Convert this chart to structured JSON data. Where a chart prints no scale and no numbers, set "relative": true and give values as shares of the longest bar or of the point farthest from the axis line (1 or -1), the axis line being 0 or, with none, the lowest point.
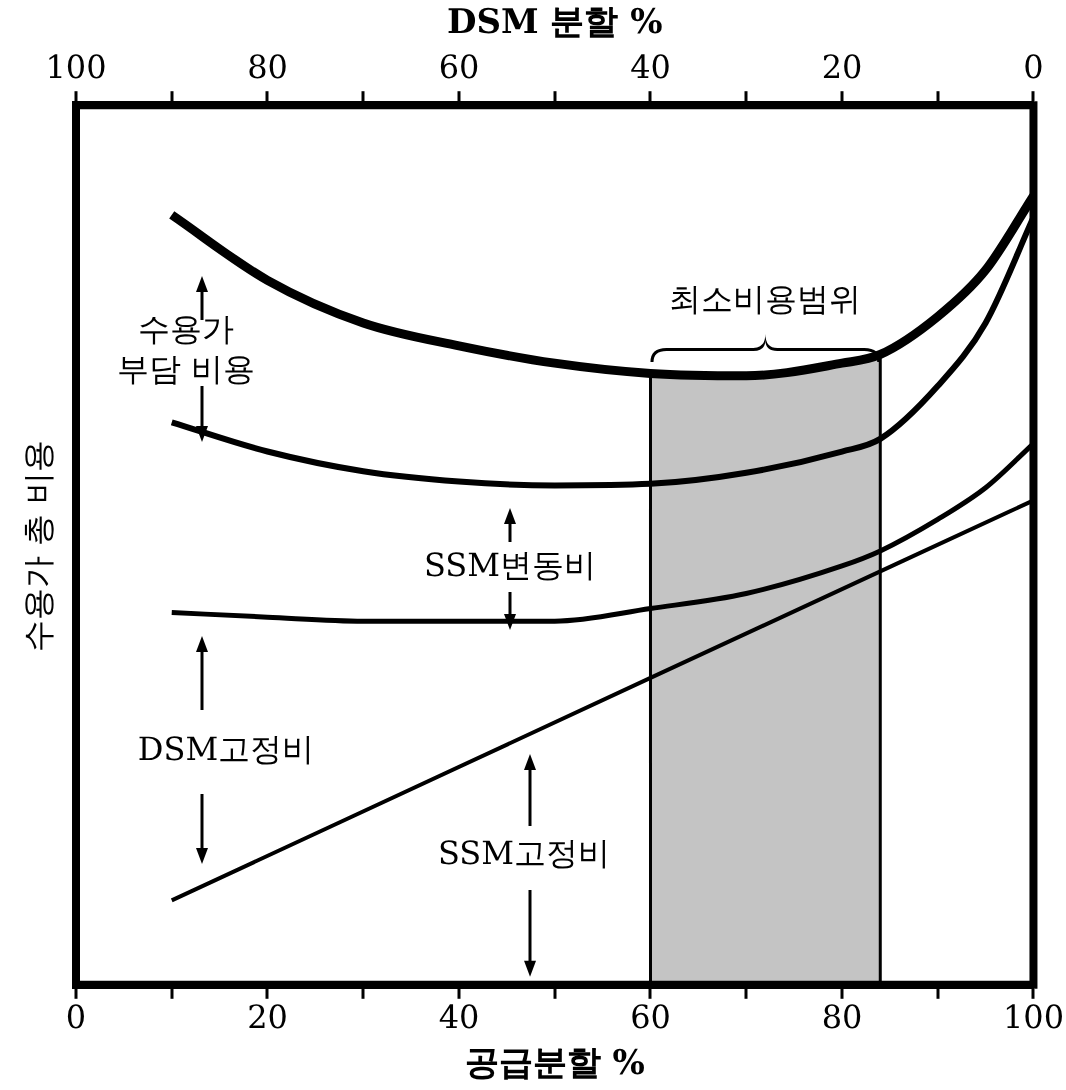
{
  "chart_data": {
    "type": "line",
    "relative": true,
    "xlabel": "공급분할 %",
    "x2label": "DSM 분할 %",
    "ylabel": "수용가 총 비용",
    "x": [
      10,
      20,
      30,
      40,
      50,
      60,
      70,
      80,
      84,
      90,
      95,
      100
    ],
    "series": [
      {
        "color": "#000000",
        "values": [
          0.976,
          0.893,
          0.839,
          0.81,
          0.788,
          0.775,
          0.772,
          0.788,
          0.799,
          0.847,
          0.906,
          1
        ]
      },
      {
        "color": "#000000",
        "values": [
          0.713,
          0.676,
          0.651,
          0.638,
          0.633,
          0.635,
          0.649,
          0.676,
          0.692,
          0.759,
          0.839,
          0.973
        ]
      },
      {
        "color": "#000000",
        "values": [
          0.472,
          0.466,
          0.461,
          0.461,
          0.461,
          0.477,
          0.496,
          0.531,
          0.55,
          0.59,
          0.63,
          0.686
        ]
      },
      {
        "color": "#000000",
        "x": [
          10,
          60,
          100
        ],
        "values": [
          0.107,
          0.389,
          0.614
        ]
      }
    ],
    "xlim": [
      0,
      100
    ],
    "xticks": [
      0,
      {
        "value": 10,
        "label": null
      },
      20,
      {
        "value": 30,
        "label": null
      },
      40,
      {
        "value": 50,
        "label": null
      },
      60,
      {
        "value": 70,
        "label": null
      },
      80,
      {
        "value": 90,
        "label": null
      },
      100
    ],
    "x2lim": [
      100,
      0
    ],
    "x2ticks": [
      100,
      {
        "value": 90,
        "label": null
      },
      80,
      {
        "value": 70,
        "label": null
      },
      60,
      {
        "value": 50,
        "label": null
      },
      40,
      {
        "value": 30,
        "label": null
      },
      20,
      {
        "value": 10,
        "label": null
      },
      0
    ],
    "bands": [
      {
        "axis": "x",
        "from": 60,
        "to": 84,
        "label": "최소비용범위"
      }
    ],
    "annotations": [
      "수용가 부담 비용",
      "SSM변동비",
      "DSM고정비",
      "SSM고정비"
    ]
  }
}
